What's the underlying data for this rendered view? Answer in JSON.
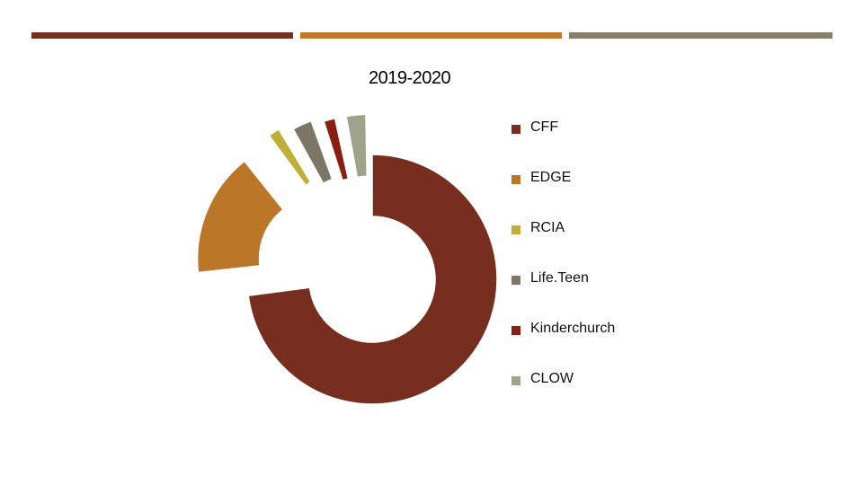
{
  "decor": {
    "bars": [
      "#772e1f",
      "#c07a29",
      "#877d68"
    ]
  },
  "chart_data": {
    "type": "pie",
    "title": "2019-2020",
    "legend_position": "right",
    "categories": [
      "CFF",
      "EDGE",
      "RCIA",
      "Life.Teen",
      "Kinderchurch",
      "CLOW"
    ],
    "values": [
      70,
      16,
      2,
      3,
      2,
      3
    ],
    "colors": [
      "#772e1f",
      "#bb7628",
      "#c1ae38",
      "#7d7565",
      "#8a1e10",
      "#9fa38a"
    ],
    "style": "doughnut",
    "exploded": true
  }
}
